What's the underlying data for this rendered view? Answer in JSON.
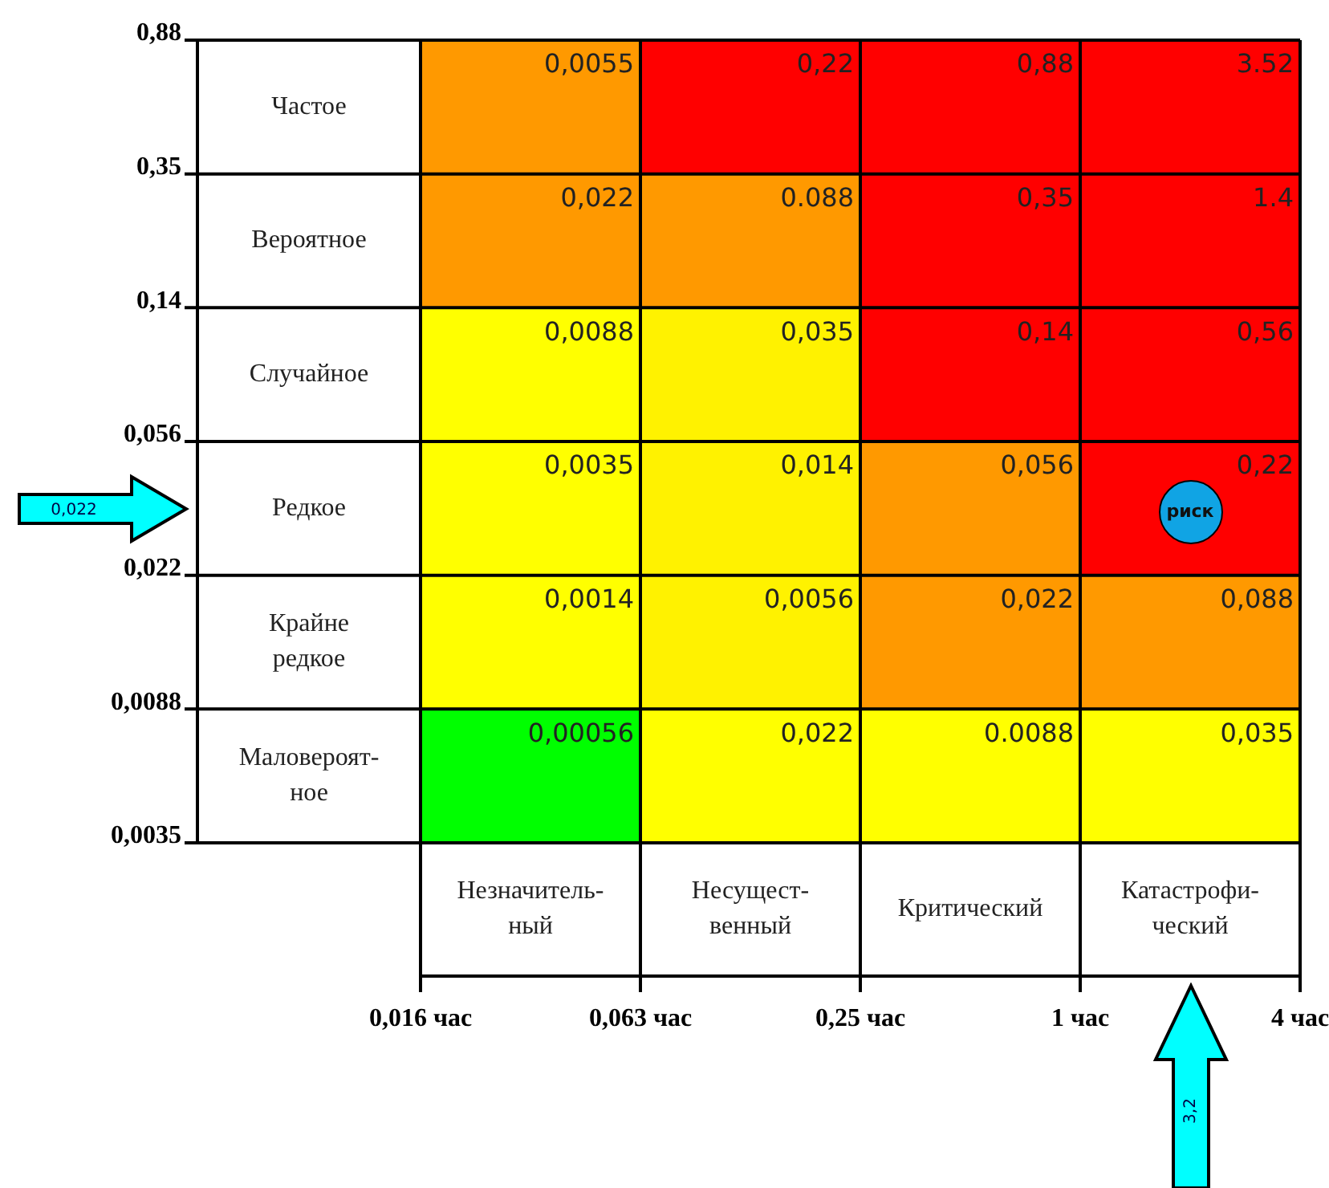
{
  "chart_data": {
    "type": "heatmap",
    "categories": [
      "Незначитель-\nный",
      "Несущест-\nвенный",
      "Критический",
      "Катастрофи-\nческий"
    ],
    "y_categories": [
      "Частое",
      "Вероятное",
      "Случайное",
      "Редкое",
      "Крайне\nредкое",
      "Маловероят-\nное"
    ],
    "cells": [
      [
        0.0055,
        0.22,
        0.88,
        3.52
      ],
      [
        0.022,
        0.088,
        0.35,
        1.4
      ],
      [
        0.0088,
        0.035,
        0.14,
        0.56
      ],
      [
        0.0035,
        0.014,
        0.056,
        0.22
      ],
      [
        0.0014,
        0.0056,
        0.022,
        0.088
      ],
      [
        0.00056,
        0.022,
        0.0088,
        0.035
      ]
    ],
    "cell_labels": [
      [
        "0,0055",
        "0,22",
        "0,88",
        "3.52"
      ],
      [
        "0,022",
        "0.088",
        "0,35",
        "1.4"
      ],
      [
        "0,0088",
        "0,035",
        "0,14",
        "0,56"
      ],
      [
        "0,0035",
        "0,014",
        "0,056",
        "0,22"
      ],
      [
        "0,0014",
        "0,0056",
        "0,022",
        "0,088"
      ],
      [
        "0,00056",
        "0,022",
        "0.0088",
        "0,035"
      ]
    ],
    "colors": [
      [
        "#ff9900",
        "#ff0000",
        "#ff0000",
        "#ff0000"
      ],
      [
        "#ff9900",
        "#ff9900",
        "#ff0000",
        "#ff0000"
      ],
      [
        "#ffff00",
        "#fff200",
        "#ff0000",
        "#ff0000"
      ],
      [
        "#ffff00",
        "#fff200",
        "#ff9900",
        "#ff0000"
      ],
      [
        "#ffff00",
        "#fff200",
        "#ff9900",
        "#ff9900"
      ],
      [
        "#00ff00",
        "#ffff00",
        "#ffff00",
        "#ffff00"
      ]
    ],
    "annotations": [
      "0,88",
      "0,35",
      "0,14",
      "0,056",
      "0,022",
      "0,0088",
      "0,0035",
      "0,016 час",
      "0,063 час",
      "0,25 час",
      "1 час",
      "4 час",
      "0,022",
      "3,2",
      "риск"
    ]
  }
}
